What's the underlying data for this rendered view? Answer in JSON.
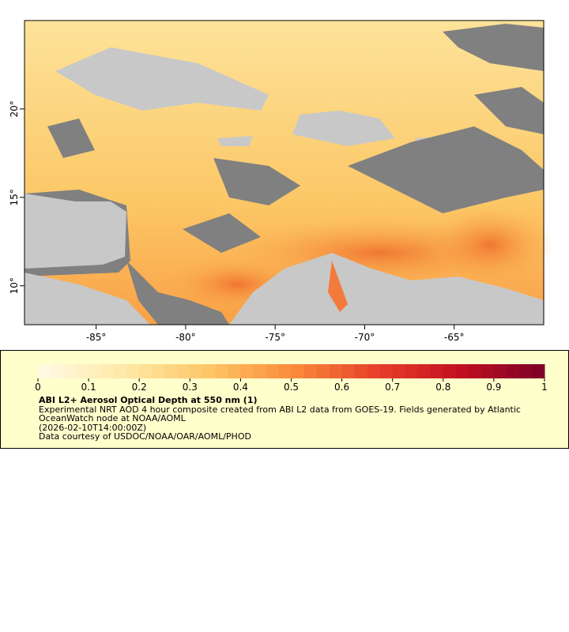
{
  "map": {
    "xlim": [
      -89,
      -60
    ],
    "ylim": [
      7.8,
      25
    ],
    "xticks": [
      {
        "value": -85,
        "label": "-85°"
      },
      {
        "value": -80,
        "label": "-80°"
      },
      {
        "value": -75,
        "label": "-75°"
      },
      {
        "value": -70,
        "label": "-70°"
      },
      {
        "value": -65,
        "label": "-65°"
      }
    ],
    "yticks": [
      {
        "value": 10,
        "label": "10°"
      },
      {
        "value": 15,
        "label": "15°"
      },
      {
        "value": 20,
        "label": "20°"
      }
    ]
  },
  "colorbar": {
    "lim": [
      0,
      1
    ],
    "ticks": [
      0,
      0.1,
      0.2,
      0.3,
      0.4,
      0.5,
      0.6,
      0.7,
      0.8,
      0.9,
      1
    ],
    "colors": [
      "#fffbe6",
      "#fee9a8",
      "#fdc767",
      "#fb8d3d",
      "#e8412a",
      "#c2101f",
      "#7a0028"
    ]
  },
  "legend": {
    "title": "ABI L2+ Aerosol Optical Depth at 550 nm (1)",
    "description": "Experimental NRT AOD 4 hour composite created from ABI L2 data from GOES-19. Fields generated by Atlantic OceanWatch node at NOAA/AOML",
    "time": "(2026-02-10T14:00:00Z)",
    "credit": "Data courtesy of USDOC/NOAA/OAR/AOML/PHOD"
  }
}
